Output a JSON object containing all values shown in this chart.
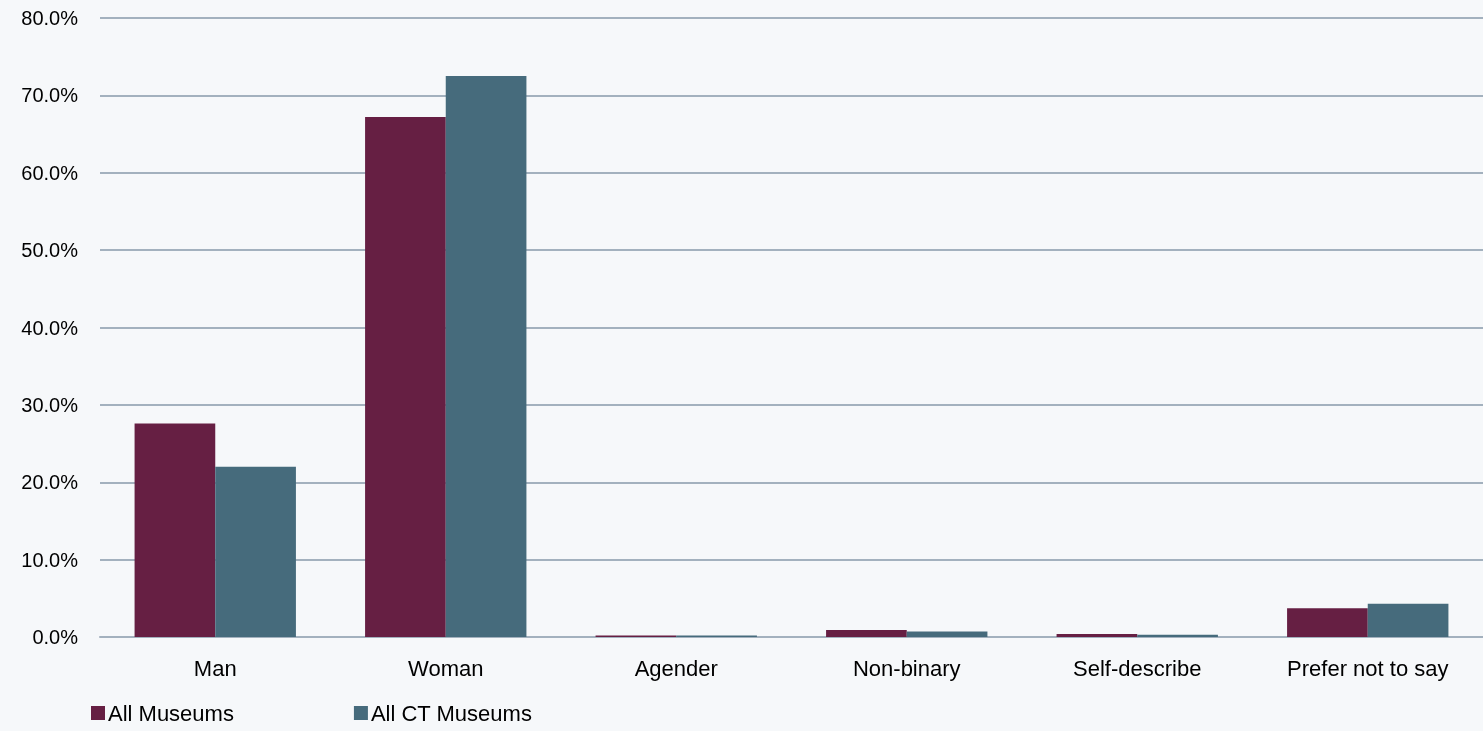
{
  "chart_data": {
    "type": "bar",
    "categories": [
      "Man",
      "Woman",
      "Agender",
      "Non-binary",
      "Self-describe",
      "Prefer not to say"
    ],
    "series": [
      {
        "name": "All Museums",
        "color": "#661f43",
        "values": [
          27.6,
          67.2,
          0.2,
          0.9,
          0.4,
          3.7
        ]
      },
      {
        "name": "All CT Museums",
        "color": "#466b7c",
        "values": [
          22.0,
          72.5,
          0.2,
          0.7,
          0.3,
          4.3
        ]
      }
    ],
    "ylim": [
      0,
      80
    ],
    "yticks": [
      {
        "value": 0,
        "label": "0.0%"
      },
      {
        "value": 10,
        "label": "10.0%"
      },
      {
        "value": 20,
        "label": "20.0%"
      },
      {
        "value": 30,
        "label": "30.0%"
      },
      {
        "value": 40,
        "label": "40.0%"
      },
      {
        "value": 50,
        "label": "50.0%"
      },
      {
        "value": 60,
        "label": "60.0%"
      },
      {
        "value": 70,
        "label": "70.0%"
      },
      {
        "value": 80,
        "label": "80.0%"
      }
    ],
    "grid": "y",
    "legend": "bottom left"
  }
}
